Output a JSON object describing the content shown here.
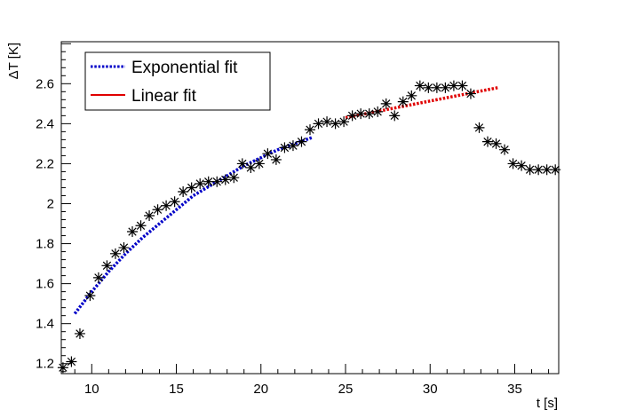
{
  "chart_data": {
    "type": "scatter",
    "xlabel": "t [s]",
    "ylabel": "ΔT [K]",
    "xlim": [
      8.2,
      37.6
    ],
    "ylim": [
      1.15,
      2.81
    ],
    "x_ticks": [
      10,
      15,
      20,
      25,
      30,
      35
    ],
    "y_ticks": [
      1.2,
      1.4,
      1.6,
      1.8,
      2,
      2.2,
      2.4,
      2.6
    ],
    "x_tick_labels": [
      "10",
      "15",
      "20",
      "25",
      "30",
      "35"
    ],
    "y_tick_labels": [
      "1.2",
      "1.4",
      "1.6",
      "1.8",
      "2",
      "2.2",
      "2.4",
      "2.6"
    ],
    "grid": false,
    "legend_position": "top-left",
    "series": [
      {
        "marker": "asterisk",
        "color": "#000000",
        "x": [
          8.3,
          8.8,
          9.3,
          9.9,
          10.4,
          10.9,
          11.4,
          11.9,
          12.4,
          12.9,
          13.4,
          13.9,
          14.4,
          14.9,
          15.4,
          15.9,
          16.4,
          16.9,
          17.4,
          17.9,
          18.4,
          18.9,
          19.4,
          19.9,
          20.4,
          20.9,
          21.4,
          21.9,
          22.4,
          22.9,
          23.4,
          23.9,
          24.4,
          24.9,
          25.4,
          25.9,
          26.4,
          26.9,
          27.4,
          27.9,
          28.4,
          28.9,
          29.4,
          29.9,
          30.4,
          30.9,
          31.4,
          31.9,
          32.4,
          32.9,
          33.4,
          33.9,
          34.4,
          34.9,
          35.4,
          35.9,
          36.4,
          36.9,
          37.4
        ],
        "y": [
          1.18,
          1.21,
          1.35,
          1.54,
          1.63,
          1.69,
          1.75,
          1.78,
          1.86,
          1.89,
          1.94,
          1.97,
          1.99,
          2.01,
          2.06,
          2.08,
          2.1,
          2.11,
          2.11,
          2.12,
          2.13,
          2.2,
          2.18,
          2.2,
          2.25,
          2.22,
          2.28,
          2.29,
          2.31,
          2.37,
          2.4,
          2.41,
          2.4,
          2.41,
          2.44,
          2.45,
          2.45,
          2.46,
          2.5,
          2.44,
          2.51,
          2.54,
          2.59,
          2.58,
          2.58,
          2.58,
          2.59,
          2.59,
          2.55,
          2.38,
          2.31,
          2.3,
          2.27,
          2.2,
          2.19,
          2.17,
          2.17,
          2.17,
          2.17
        ]
      },
      {
        "name": "Exponential fit",
        "style": "dotted",
        "color": "#0000c8",
        "x": [
          9.0,
          10.0,
          11.0,
          12.0,
          13.0,
          14.0,
          15.0,
          16.0,
          17.0,
          18.0,
          19.0,
          20.0,
          21.0,
          22.0,
          23.0
        ],
        "y": [
          1.45,
          1.56,
          1.66,
          1.75,
          1.83,
          1.9,
          1.97,
          2.04,
          2.09,
          2.14,
          2.19,
          2.23,
          2.27,
          2.3,
          2.33
        ]
      },
      {
        "name": "Linear fit",
        "style": "dotted",
        "color": "#e00000",
        "x": [
          25.0,
          34.0
        ],
        "y": [
          2.43,
          2.58
        ]
      }
    ]
  }
}
